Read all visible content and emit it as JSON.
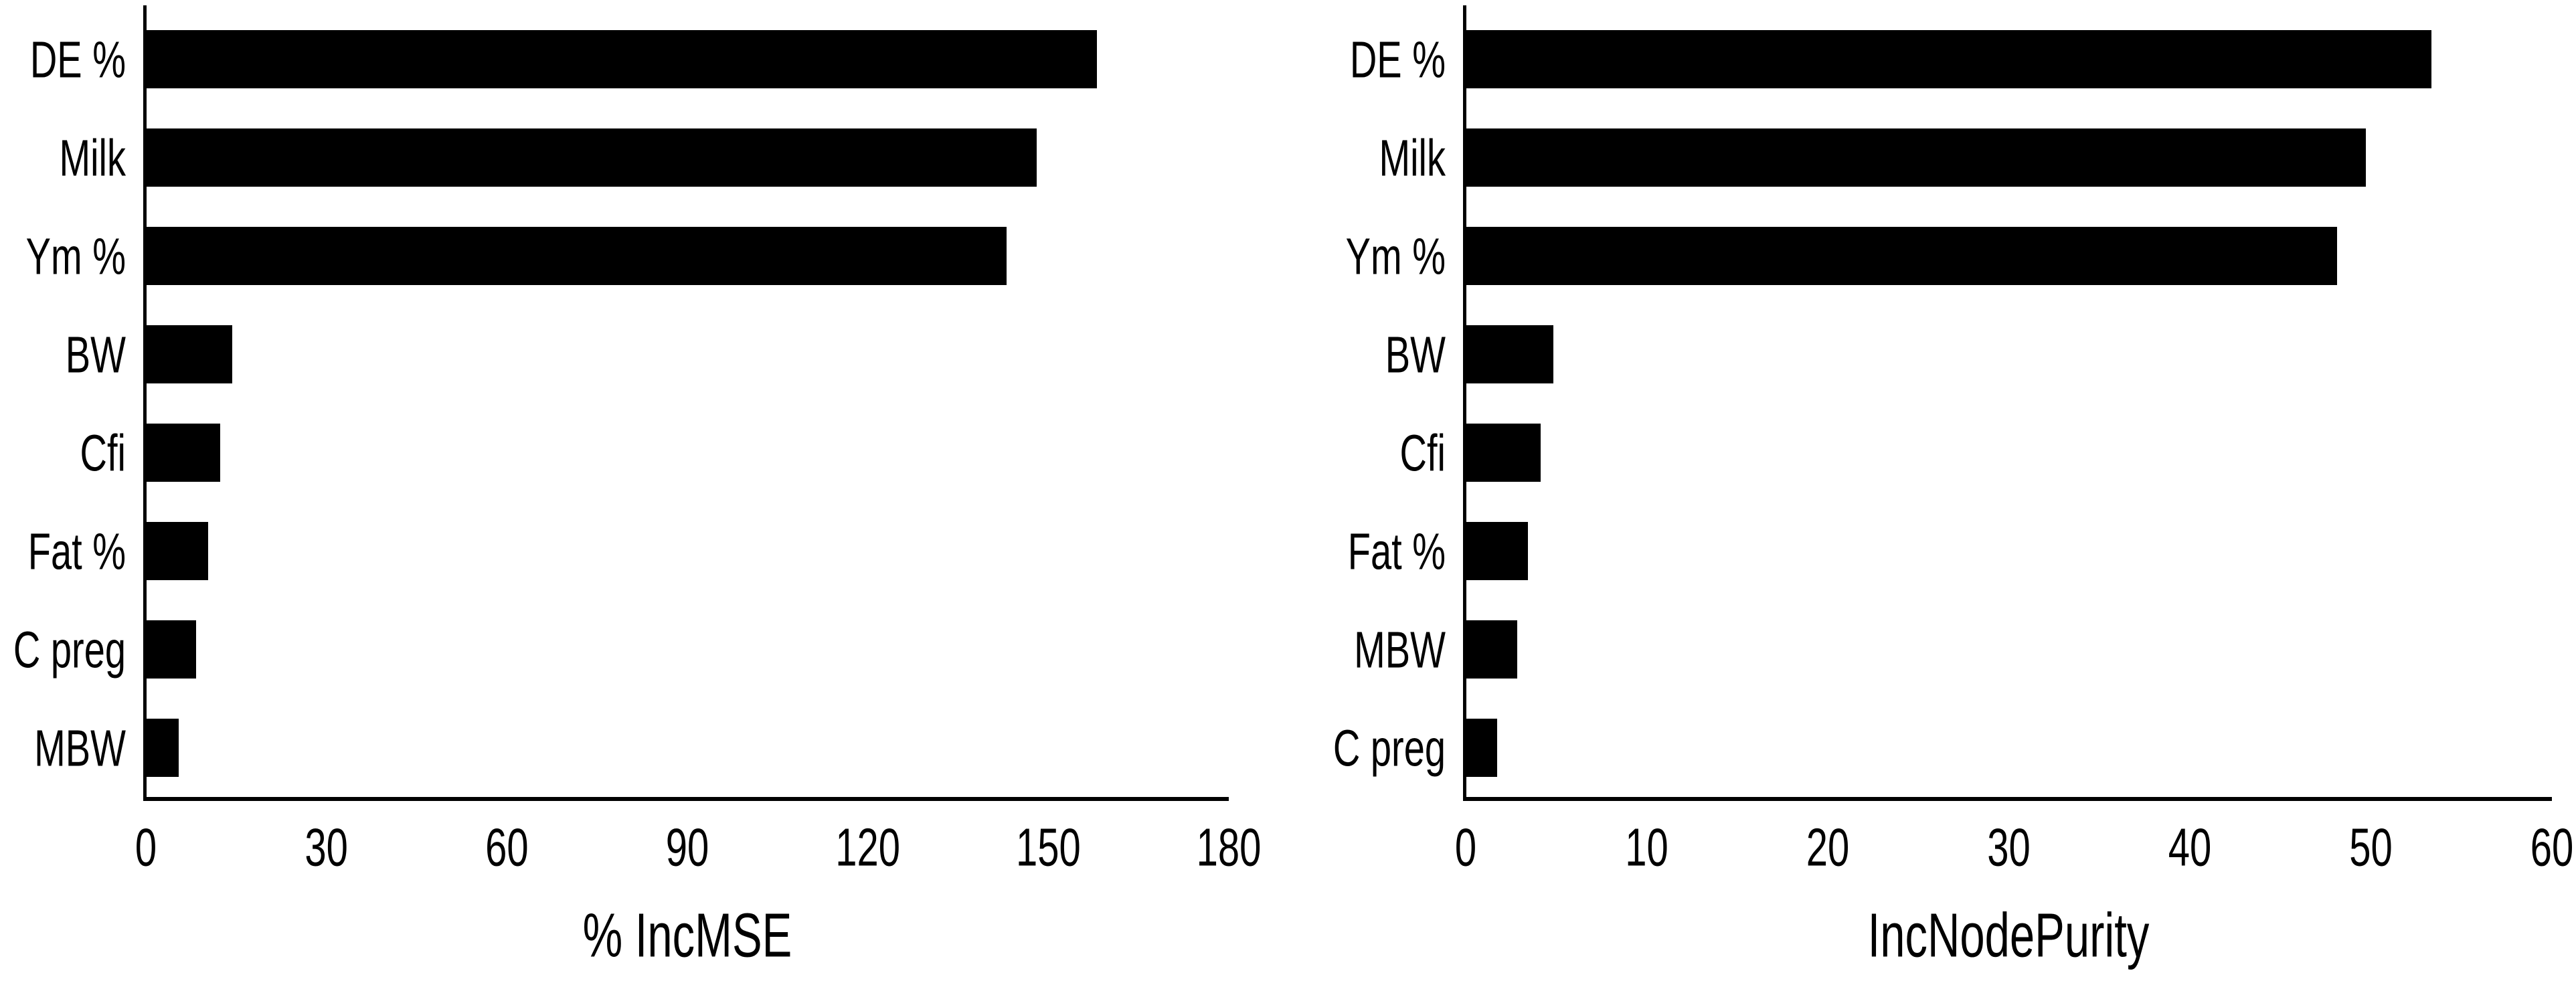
{
  "figure": {
    "background": "#ffffff",
    "bar_color": "#000000",
    "axis_color": "#000000",
    "text_color": "#000000"
  },
  "chart_data": [
    {
      "type": "bar",
      "orientation": "horizontal",
      "title": "",
      "xlabel": "% IncMSE",
      "ylabel": "",
      "categories": [
        "DE %",
        "Milk",
        "Ym %",
        "BW",
        "Cfi",
        "Fat %",
        "C preg",
        "MBW"
      ],
      "values": [
        158,
        148,
        143,
        14.2,
        12.2,
        10.2,
        8.2,
        5.3
      ],
      "xlim": [
        0,
        180
      ],
      "xticks": [
        0,
        30,
        60,
        90,
        120,
        150,
        180
      ],
      "grid": false,
      "legend": null,
      "bar_color": "#000000"
    },
    {
      "type": "bar",
      "orientation": "horizontal",
      "title": "",
      "xlabel": "IncNodePurity",
      "ylabel": "",
      "categories": [
        "DE %",
        "Milk",
        "Ym %",
        "BW",
        "Cfi",
        "Fat %",
        "MBW",
        "C preg"
      ],
      "values": [
        53.3,
        49.7,
        48.1,
        4.8,
        4.1,
        3.4,
        2.8,
        1.7
      ],
      "xlim": [
        0,
        60
      ],
      "xticks": [
        0,
        10,
        20,
        30,
        40,
        50,
        60
      ],
      "grid": false,
      "legend": null,
      "bar_color": "#000000"
    }
  ]
}
